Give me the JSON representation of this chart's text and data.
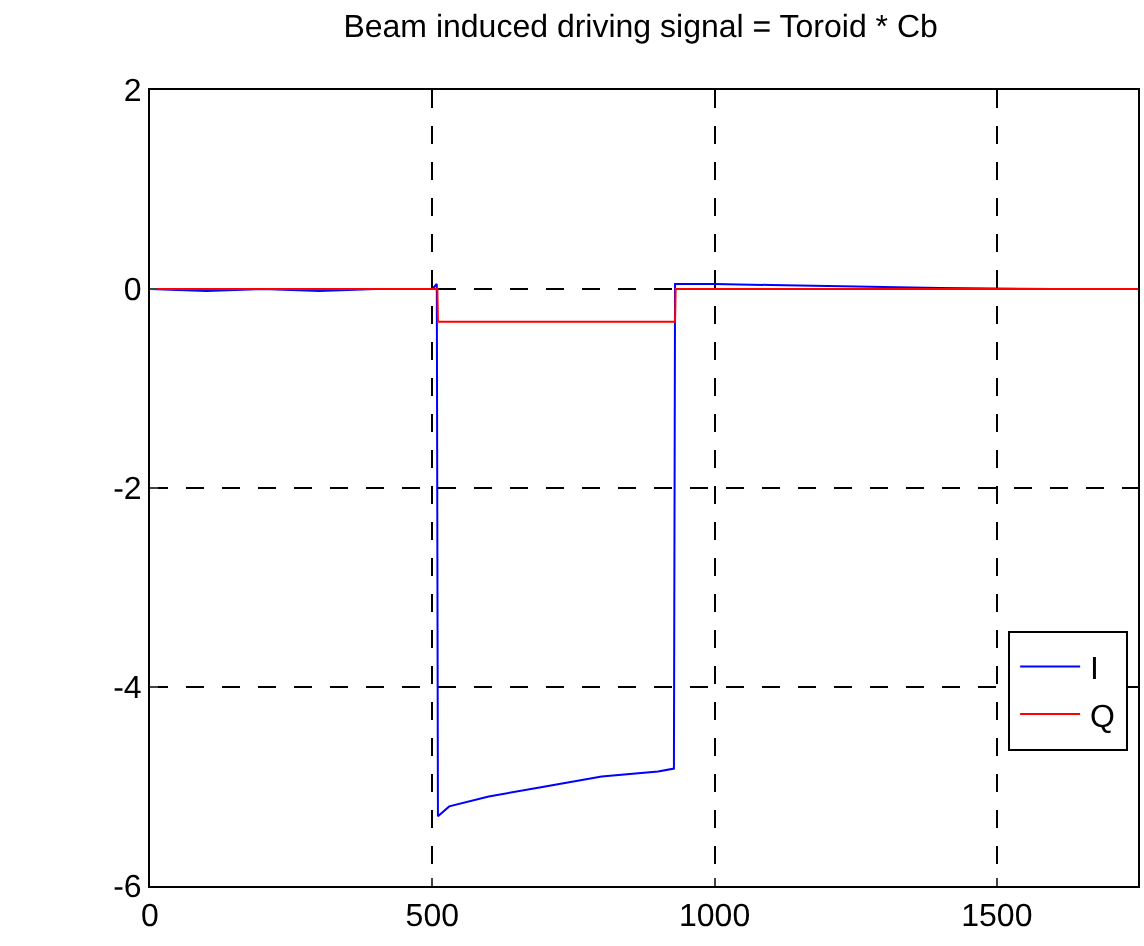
{
  "chart_data": {
    "type": "line",
    "title": "Beam induced driving signal = Toroid * Cb",
    "series": [
      {
        "name": "I",
        "color": "#0000ff",
        "x": [
          0,
          100,
          200,
          300,
          400,
          500,
          508,
          510,
          530,
          600,
          700,
          800,
          900,
          928,
          930,
          935,
          1000,
          1100,
          1200,
          1400,
          1600,
          1750
        ],
        "values": [
          0,
          -0.02,
          0,
          -0.02,
          0,
          0,
          0.05,
          -5.3,
          -5.2,
          -5.1,
          -5.0,
          -4.9,
          -4.85,
          -4.82,
          0.05,
          0.05,
          0.05,
          0.04,
          0.03,
          0.01,
          0,
          0
        ]
      },
      {
        "name": "Q",
        "color": "#ff0000",
        "x": [
          0,
          509,
          510,
          930,
          931,
          1750
        ],
        "values": [
          0,
          0,
          -0.33,
          -0.33,
          0,
          0
        ]
      }
    ],
    "xlim": [
      0,
      1750
    ],
    "xticks": [
      0,
      500,
      1000,
      1500
    ],
    "ylim": [
      -6,
      2
    ],
    "yticks": [
      2,
      0,
      -2,
      -4,
      -6
    ],
    "grid": true,
    "legend": "bottom right",
    "line_style": "solid",
    "marker": "none"
  }
}
